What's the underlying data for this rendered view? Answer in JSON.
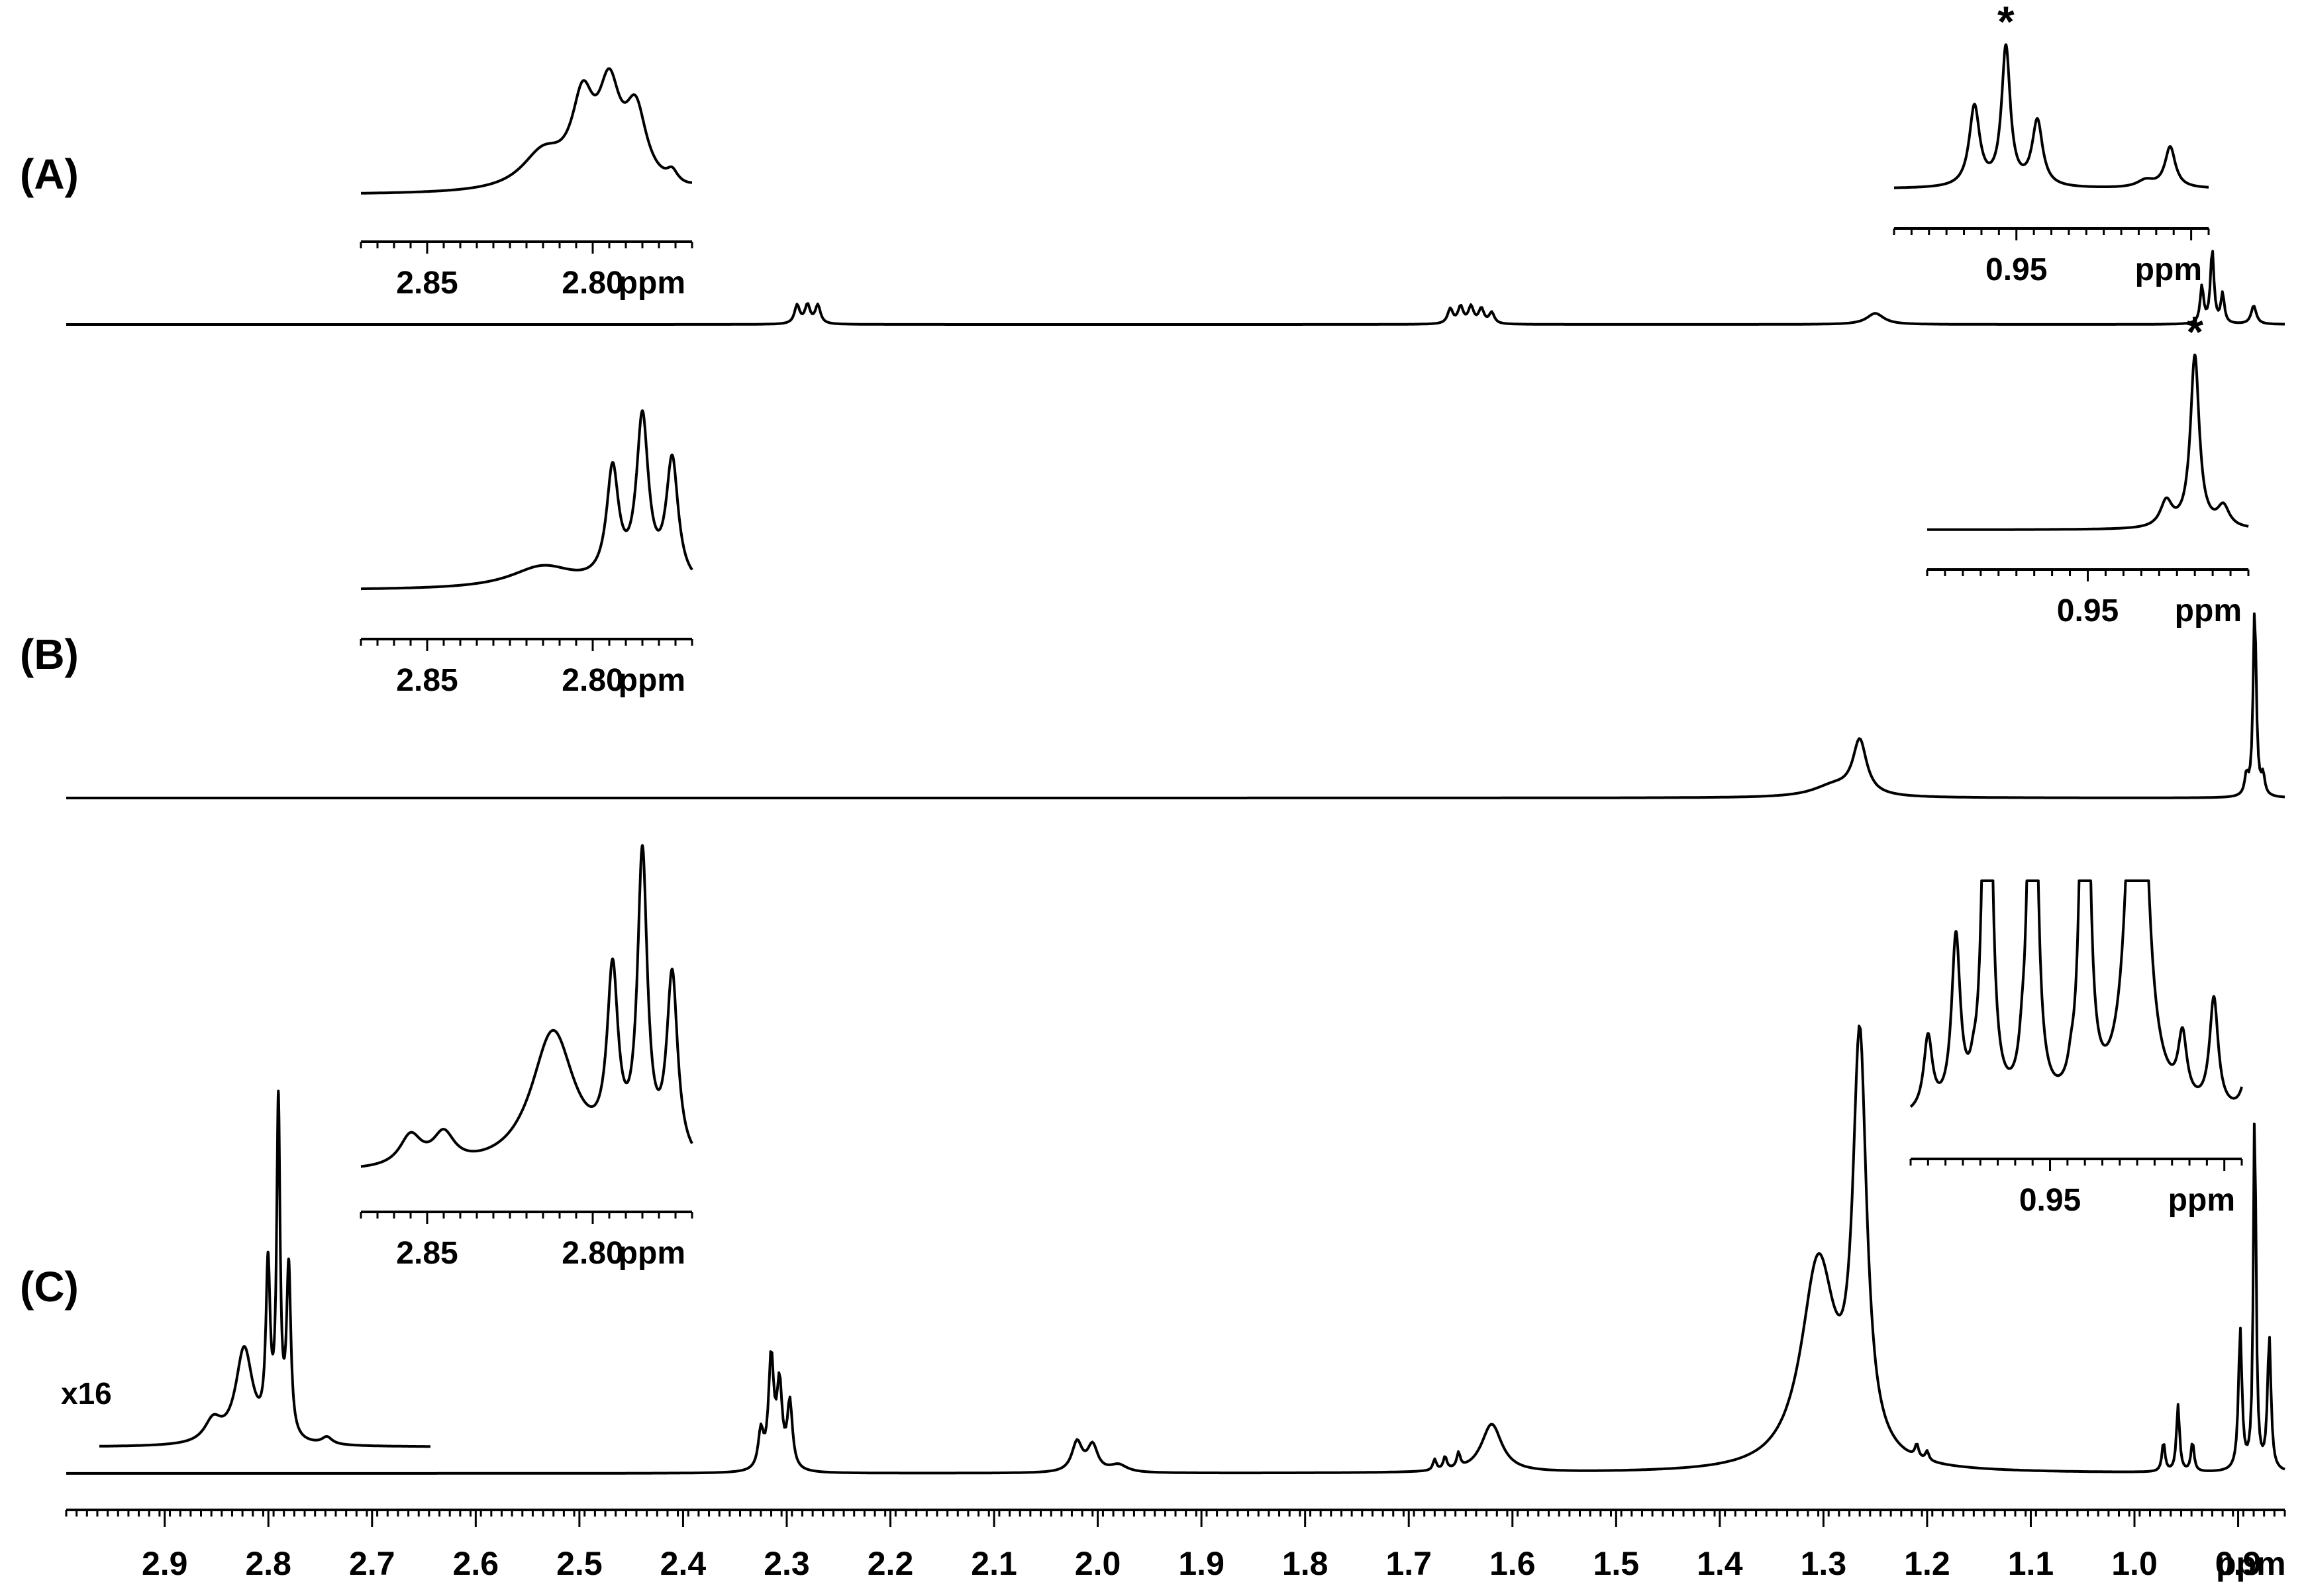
{
  "chart_data": {
    "type": "line",
    "title": "",
    "xlabel": "ppm",
    "ylabel": "",
    "x_axis": {
      "reversed": true,
      "range": [
        2.995,
        0.855
      ],
      "major_ticks": [
        2.9,
        2.8,
        2.7,
        2.6,
        2.5,
        2.4,
        2.3,
        2.2,
        2.1,
        2.0,
        1.9,
        1.8,
        1.7,
        1.6,
        1.5,
        1.4,
        1.3,
        1.2,
        1.1,
        1.0,
        0.9
      ],
      "tick_labels": [
        "2.9",
        "2.8",
        "2.7",
        "2.6",
        "2.5",
        "2.4",
        "2.3",
        "2.2",
        "2.1",
        "2.0",
        "1.9",
        "1.8",
        "1.7",
        "1.6",
        "1.5",
        "1.4",
        "1.3",
        "1.2",
        "1.1",
        "1.0",
        "0.9"
      ],
      "unit_label": "ppm",
      "minor_tick_step": 0.01
    },
    "grid": false,
    "legend": "none",
    "spectra": [
      {
        "label": "(A)",
        "peaks": [
          {
            "ppm": 2.29,
            "height": 0.05,
            "width": 0.003
          },
          {
            "ppm": 2.28,
            "height": 0.05,
            "width": 0.003
          },
          {
            "ppm": 2.27,
            "height": 0.05,
            "width": 0.003
          },
          {
            "ppm": 1.66,
            "height": 0.04,
            "width": 0.003
          },
          {
            "ppm": 1.65,
            "height": 0.045,
            "width": 0.003
          },
          {
            "ppm": 1.64,
            "height": 0.045,
            "width": 0.003
          },
          {
            "ppm": 1.63,
            "height": 0.04,
            "width": 0.003
          },
          {
            "ppm": 1.62,
            "height": 0.03,
            "width": 0.003
          },
          {
            "ppm": 1.25,
            "height": 0.03,
            "width": 0.01
          },
          {
            "ppm": 0.935,
            "height": 0.1,
            "width": 0.002
          },
          {
            "ppm": 0.925,
            "height": 0.2,
            "width": 0.002
          },
          {
            "ppm": 0.915,
            "height": 0.08,
            "width": 0.002
          },
          {
            "ppm": 0.885,
            "height": 0.05,
            "width": 0.003
          }
        ],
        "insets": [
          {
            "ppm_range": [
              2.87,
              2.77
            ],
            "tick_labels": [
              {
                "ppm": 2.85,
                "text": "2.85"
              },
              {
                "ppm": 2.8,
                "text": "2.80"
              }
            ],
            "unit_label": "ppm",
            "baseline": 0.05,
            "peaks": [
              {
                "ppm": 2.815,
                "height": 0.25,
                "width": 0.008
              },
              {
                "ppm": 2.803,
                "height": 0.55,
                "width": 0.004
              },
              {
                "ppm": 2.795,
                "height": 0.62,
                "width": 0.004
              },
              {
                "ppm": 2.787,
                "height": 0.5,
                "width": 0.004
              },
              {
                "ppm": 2.776,
                "height": 0.08,
                "width": 0.002
              },
              {
                "ppm": 2.767,
                "height": 0.06,
                "width": 0.002
              }
            ]
          },
          {
            "ppm_range": [
              0.985,
              0.895
            ],
            "tick_labels": [
              {
                "ppm": 0.95,
                "text": "0.95"
              }
            ],
            "unit_label": "ppm",
            "baseline": 0.0,
            "marker": {
              "ppm": 0.953,
              "text": "*"
            },
            "peaks": [
              {
                "ppm": 0.962,
                "height": 0.55,
                "width": 0.0018
              },
              {
                "ppm": 0.953,
                "height": 0.95,
                "width": 0.0015
              },
              {
                "ppm": 0.944,
                "height": 0.45,
                "width": 0.0018
              },
              {
                "ppm": 0.913,
                "height": 0.05,
                "width": 0.003
              },
              {
                "ppm": 0.906,
                "height": 0.28,
                "width": 0.0018
              }
            ]
          }
        ]
      },
      {
        "label": "(B)",
        "peaks": [
          {
            "ppm": 1.29,
            "height": 0.06,
            "width": 0.025
          },
          {
            "ppm": 1.265,
            "height": 0.28,
            "width": 0.008
          },
          {
            "ppm": 0.892,
            "height": 0.1,
            "width": 0.002
          },
          {
            "ppm": 0.884,
            "height": 1.0,
            "width": 0.0018
          },
          {
            "ppm": 0.876,
            "height": 0.1,
            "width": 0.002
          }
        ],
        "insets": [
          {
            "ppm_range": [
              2.87,
              2.77
            ],
            "tick_labels": [
              {
                "ppm": 2.85,
                "text": "2.85"
              },
              {
                "ppm": 2.8,
                "text": "2.80"
              }
            ],
            "unit_label": "ppm",
            "baseline": 0.05,
            "peaks": [
              {
                "ppm": 2.815,
                "height": 0.12,
                "width": 0.012
              },
              {
                "ppm": 2.794,
                "height": 0.6,
                "width": 0.0022
              },
              {
                "ppm": 2.785,
                "height": 0.88,
                "width": 0.0022
              },
              {
                "ppm": 2.776,
                "height": 0.66,
                "width": 0.0022
              }
            ]
          },
          {
            "ppm_range": [
              0.995,
              0.905
            ],
            "tick_labels": [
              {
                "ppm": 0.95,
                "text": "0.95"
              }
            ],
            "unit_label": "ppm",
            "baseline": 0.0,
            "marker": {
              "ppm": 0.92,
              "text": "*"
            },
            "peaks": [
              {
                "ppm": 0.928,
                "height": 0.15,
                "width": 0.002
              },
              {
                "ppm": 0.92,
                "height": 1.0,
                "width": 0.0015
              },
              {
                "ppm": 0.912,
                "height": 0.12,
                "width": 0.002
              }
            ]
          }
        ]
      },
      {
        "label": "(C)",
        "peaks": [
          {
            "ppm": 2.325,
            "height": 0.1,
            "width": 0.003
          },
          {
            "ppm": 2.315,
            "height": 0.3,
            "width": 0.003
          },
          {
            "ppm": 2.307,
            "height": 0.22,
            "width": 0.003
          },
          {
            "ppm": 2.297,
            "height": 0.18,
            "width": 0.003
          },
          {
            "ppm": 2.02,
            "height": 0.08,
            "width": 0.006
          },
          {
            "ppm": 2.005,
            "height": 0.07,
            "width": 0.006
          },
          {
            "ppm": 1.98,
            "height": 0.02,
            "width": 0.01
          },
          {
            "ppm": 1.675,
            "height": 0.03,
            "width": 0.002
          },
          {
            "ppm": 1.665,
            "height": 0.035,
            "width": 0.002
          },
          {
            "ppm": 1.652,
            "height": 0.04,
            "width": 0.002
          },
          {
            "ppm": 1.62,
            "height": 0.13,
            "width": 0.012
          },
          {
            "ppm": 1.305,
            "height": 0.55,
            "width": 0.02
          },
          {
            "ppm": 1.265,
            "height": 1.1,
            "width": 0.008
          },
          {
            "ppm": 1.21,
            "height": 0.035,
            "width": 0.002
          },
          {
            "ppm": 1.2,
            "height": 0.025,
            "width": 0.002
          },
          {
            "ppm": 0.972,
            "height": 0.08,
            "width": 0.0018
          },
          {
            "ppm": 0.958,
            "height": 0.18,
            "width": 0.0018
          },
          {
            "ppm": 0.944,
            "height": 0.08,
            "width": 0.0018
          },
          {
            "ppm": 0.898,
            "height": 0.38,
            "width": 0.002
          },
          {
            "ppm": 0.884,
            "height": 1.0,
            "width": 0.0015
          },
          {
            "ppm": 0.87,
            "height": 0.36,
            "width": 0.002
          }
        ],
        "scaled_segment": {
          "scale_label": "x16",
          "ppm_range": [
            2.95,
            2.63
          ],
          "peaks": [
            {
              "ppm": 2.84,
              "height": 0.06,
              "width": 0.01
            },
            {
              "ppm": 2.81,
              "height": 0.26,
              "width": 0.01
            },
            {
              "ppm": 2.787,
              "height": 0.45,
              "width": 0.0025
            },
            {
              "ppm": 2.777,
              "height": 0.9,
              "width": 0.002
            },
            {
              "ppm": 2.767,
              "height": 0.46,
              "width": 0.0025
            },
            {
              "ppm": 2.73,
              "height": 0.02,
              "width": 0.006
            }
          ]
        },
        "insets": [
          {
            "ppm_range": [
              2.87,
              2.77
            ],
            "tick_labels": [
              {
                "ppm": 2.85,
                "text": "2.85"
              },
              {
                "ppm": 2.8,
                "text": "2.80"
              }
            ],
            "unit_label": "ppm",
            "baseline": 0.0,
            "peaks": [
              {
                "ppm": 2.855,
                "height": 0.1,
                "width": 0.004
              },
              {
                "ppm": 2.845,
                "height": 0.1,
                "width": 0.004
              },
              {
                "ppm": 2.812,
                "height": 0.45,
                "width": 0.008
              },
              {
                "ppm": 2.794,
                "height": 0.58,
                "width": 0.002
              },
              {
                "ppm": 2.785,
                "height": 0.98,
                "width": 0.0018
              },
              {
                "ppm": 2.776,
                "height": 0.6,
                "width": 0.002
              }
            ]
          },
          {
            "ppm_range": [
              0.99,
              0.895
            ],
            "tick_labels": [
              {
                "ppm": 0.95,
                "text": "0.95"
              }
            ],
            "unit_label": "ppm",
            "baseline": 0.0,
            "peaks": [
              {
                "ppm": 0.985,
                "height": 0.35,
                "width": 0.0015
              },
              {
                "ppm": 0.977,
                "height": 0.8,
                "width": 0.0015
              },
              {
                "ppm": 0.972,
                "height": 0.06,
                "width": 0.001
              },
              {
                "ppm": 0.968,
                "height": 3.0,
                "width": 0.0012
              },
              {
                "ppm": 0.958,
                "height": 0.1,
                "width": 0.001
              },
              {
                "ppm": 0.955,
                "height": 3.0,
                "width": 0.0012
              },
              {
                "ppm": 0.944,
                "height": 0.06,
                "width": 0.001
              },
              {
                "ppm": 0.94,
                "height": 3.0,
                "width": 0.0012
              },
              {
                "ppm": 0.925,
                "height": 3.0,
                "width": 0.0025
              },
              {
                "ppm": 0.912,
                "height": 0.3,
                "width": 0.0015
              },
              {
                "ppm": 0.903,
                "height": 0.52,
                "width": 0.0015
              },
              {
                "ppm": 0.893,
                "height": 0.3,
                "width": 0.0015
              }
            ]
          }
        ]
      }
    ]
  }
}
